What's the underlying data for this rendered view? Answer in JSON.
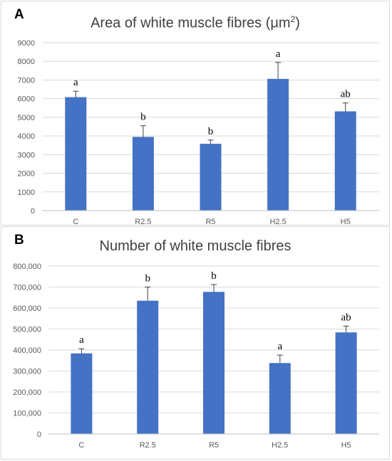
{
  "chart_data": [
    {
      "type": "bar",
      "panel_label": "A",
      "title_main": "Area of white muscle fibres (μm",
      "title_sup": "2",
      "title_end": ")",
      "categories": [
        "C",
        "R2.5",
        "R5",
        "H2.5",
        "H5"
      ],
      "values": [
        6080,
        3950,
        3580,
        7060,
        5320
      ],
      "errors": [
        320,
        600,
        200,
        880,
        450
      ],
      "significance": [
        "a",
        "b",
        "b",
        "a",
        "ab"
      ],
      "ylim": [
        0,
        9000
      ],
      "yticks": [
        0,
        1000,
        2000,
        3000,
        4000,
        5000,
        6000,
        7000,
        8000,
        9000
      ],
      "ytick_labels": [
        "0",
        "1000",
        "2000",
        "3000",
        "4000",
        "5000",
        "6000",
        "7000",
        "8000",
        "9000"
      ],
      "grid": true,
      "bar_color": "#4472c4"
    },
    {
      "type": "bar",
      "panel_label": "B",
      "title_main": "Number of white muscle fibres",
      "title_sup": "",
      "title_end": "",
      "categories": [
        "C",
        "R2.5",
        "R5",
        "H2.5",
        "H5"
      ],
      "values": [
        384000,
        635000,
        677000,
        338000,
        484000
      ],
      "errors": [
        22000,
        65000,
        35000,
        38000,
        30000
      ],
      "significance": [
        "a",
        "b",
        "b",
        "a",
        "ab"
      ],
      "ylim": [
        0,
        800000
      ],
      "yticks": [
        0,
        100000,
        200000,
        300000,
        400000,
        500000,
        600000,
        700000,
        800000
      ],
      "ytick_labels": [
        "0",
        "100,000",
        "200,000",
        "300,000",
        "400,000",
        "500,000",
        "600,000",
        "700,000",
        "800,000"
      ],
      "grid": true,
      "bar_color": "#4472c4"
    }
  ]
}
